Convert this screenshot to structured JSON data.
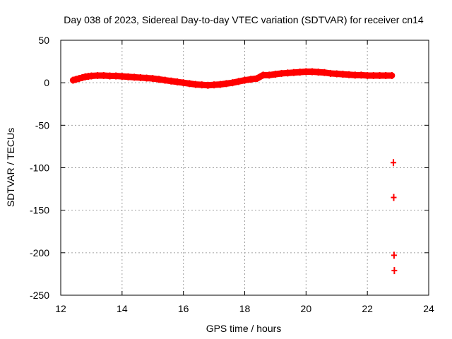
{
  "chart_data": {
    "type": "scatter",
    "title": "Day 038 of 2023, Sidereal Day-to-day VTEC variation (SDTVAR) for receiver cn14",
    "xlabel": "GPS time / hours",
    "ylabel": "SDTVAR / TECUs",
    "xlim": [
      12,
      24
    ],
    "ylim": [
      -250,
      50
    ],
    "xticks": [
      12,
      14,
      16,
      18,
      20,
      22,
      24
    ],
    "yticks": [
      50,
      0,
      -50,
      -100,
      -150,
      -200,
      -250
    ],
    "grid": true,
    "marker": "plus",
    "series": [
      {
        "name": "SDTVAR",
        "color": "#ff0000",
        "x": [
          12.4,
          12.5,
          12.6,
          12.7,
          12.8,
          12.9,
          13.0,
          13.2,
          13.4,
          13.6,
          13.8,
          14.0,
          14.2,
          14.4,
          14.6,
          14.8,
          15.0,
          15.2,
          15.4,
          15.6,
          15.8,
          16.0,
          16.2,
          16.4,
          16.6,
          16.8,
          17.0,
          17.2,
          17.4,
          17.6,
          17.8,
          18.0,
          18.2,
          18.4,
          18.6,
          18.8,
          19.0,
          19.2,
          19.4,
          19.6,
          19.8,
          20.0,
          20.2,
          20.4,
          20.6,
          20.8,
          21.0,
          21.2,
          21.4,
          21.6,
          21.8,
          22.0,
          22.2,
          22.4,
          22.6,
          22.8,
          22.85,
          22.86,
          22.87,
          22.88
        ],
        "y": [
          3,
          4,
          5,
          6,
          7,
          7.5,
          8,
          8.5,
          8.5,
          8,
          8,
          7.5,
          7,
          6.5,
          6,
          5.5,
          5,
          4,
          3,
          2,
          1,
          0,
          -1,
          -2,
          -2.5,
          -3,
          -2.5,
          -2,
          -1,
          0,
          1.5,
          3,
          4,
          5,
          9,
          9,
          10,
          11,
          11.5,
          12,
          12.5,
          13,
          13,
          12.5,
          12,
          11,
          10.5,
          10,
          9.5,
          9,
          9,
          8.5,
          8.5,
          8.5,
          8.5,
          8.5,
          -94,
          -135,
          -203,
          -221
        ]
      }
    ]
  }
}
